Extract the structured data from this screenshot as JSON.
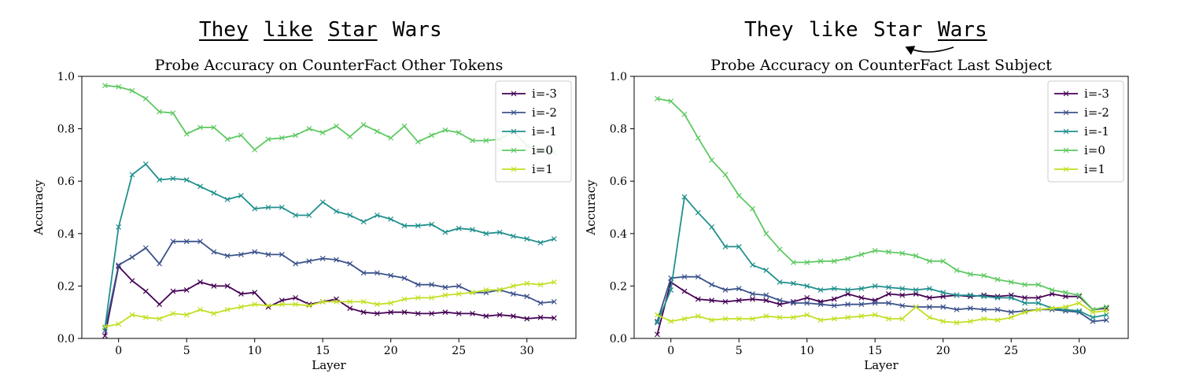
{
  "captions": [
    {
      "words": [
        {
          "text": "They",
          "underline": true
        },
        {
          "text": "like",
          "underline": true
        },
        {
          "text": "Star",
          "underline": true
        },
        {
          "text": "Wars",
          "underline": false
        }
      ],
      "arrow": false
    },
    {
      "words": [
        {
          "text": "They",
          "underline": false
        },
        {
          "text": "like",
          "underline": false
        },
        {
          "text": "Star",
          "underline": false
        },
        {
          "text": "Wars",
          "underline": true
        }
      ],
      "arrow": true
    }
  ],
  "colors": {
    "i=-3": "#440154",
    "i=-2": "#3b528b",
    "i=-1": "#21908d",
    "i=0": "#5ec962",
    "i=1": "#c2df23"
  },
  "chart_data": [
    {
      "type": "line",
      "title": "Probe Accuracy on CounterFact Other Tokens",
      "xlabel": "Layer",
      "ylabel": "Accuracy",
      "xlim": [
        -2.7,
        33.6
      ],
      "ylim": [
        0.0,
        1.0
      ],
      "xticks": [
        0,
        5,
        10,
        15,
        20,
        25,
        30
      ],
      "yticks": [
        0.0,
        0.2,
        0.4,
        0.6,
        0.8,
        1.0
      ],
      "legend_position": "top-right",
      "x": [
        -1,
        0,
        1,
        2,
        3,
        4,
        5,
        6,
        7,
        8,
        9,
        10,
        11,
        12,
        13,
        14,
        15,
        16,
        17,
        18,
        19,
        20,
        21,
        22,
        23,
        24,
        25,
        26,
        27,
        28,
        29,
        30,
        31,
        32
      ],
      "series": [
        {
          "name": "i=-3",
          "values": [
            0.01,
            0.275,
            0.22,
            0.18,
            0.13,
            0.18,
            0.185,
            0.215,
            0.2,
            0.2,
            0.17,
            0.175,
            0.12,
            0.145,
            0.155,
            0.13,
            0.14,
            0.15,
            0.115,
            0.1,
            0.095,
            0.1,
            0.1,
            0.095,
            0.095,
            0.1,
            0.095,
            0.095,
            0.085,
            0.09,
            0.085,
            0.075,
            0.08,
            0.078
          ]
        },
        {
          "name": "i=-2",
          "values": [
            0.03,
            0.28,
            0.31,
            0.345,
            0.285,
            0.37,
            0.37,
            0.37,
            0.33,
            0.315,
            0.32,
            0.33,
            0.32,
            0.32,
            0.285,
            0.295,
            0.305,
            0.3,
            0.285,
            0.25,
            0.25,
            0.24,
            0.23,
            0.205,
            0.205,
            0.195,
            0.2,
            0.175,
            0.175,
            0.185,
            0.17,
            0.16,
            0.135,
            0.14
          ]
        },
        {
          "name": "i=-1",
          "values": [
            0.04,
            0.425,
            0.625,
            0.665,
            0.605,
            0.61,
            0.605,
            0.58,
            0.555,
            0.53,
            0.545,
            0.495,
            0.5,
            0.5,
            0.47,
            0.47,
            0.52,
            0.485,
            0.47,
            0.445,
            0.47,
            0.455,
            0.43,
            0.43,
            0.435,
            0.405,
            0.42,
            0.415,
            0.4,
            0.405,
            0.39,
            0.38,
            0.365,
            0.38
          ]
        },
        {
          "name": "i=0",
          "values": [
            0.965,
            0.96,
            0.945,
            0.915,
            0.865,
            0.86,
            0.78,
            0.805,
            0.805,
            0.76,
            0.775,
            0.72,
            0.76,
            0.765,
            0.775,
            0.8,
            0.785,
            0.81,
            0.77,
            0.815,
            0.79,
            0.765,
            0.81,
            0.75,
            0.775,
            0.795,
            0.785,
            0.755,
            0.755,
            0.76,
            0.79,
            0.735,
            0.715,
            0.71
          ]
        },
        {
          "name": "i=1",
          "values": [
            0.045,
            0.055,
            0.09,
            0.08,
            0.075,
            0.095,
            0.09,
            0.11,
            0.095,
            0.11,
            0.12,
            0.13,
            0.125,
            0.13,
            0.13,
            0.125,
            0.14,
            0.14,
            0.14,
            0.14,
            0.13,
            0.135,
            0.15,
            0.155,
            0.155,
            0.165,
            0.17,
            0.175,
            0.185,
            0.185,
            0.2,
            0.21,
            0.205,
            0.215
          ]
        }
      ]
    },
    {
      "type": "line",
      "title": "Probe Accuracy on CounterFact Last Subject",
      "xlabel": "Layer",
      "ylabel": "Accuracy",
      "xlim": [
        -2.7,
        33.6
      ],
      "ylim": [
        0.0,
        1.0
      ],
      "xticks": [
        0,
        5,
        10,
        15,
        20,
        25,
        30
      ],
      "yticks": [
        0.0,
        0.2,
        0.4,
        0.6,
        0.8,
        1.0
      ],
      "legend_position": "top-right",
      "x": [
        -1,
        0,
        1,
        2,
        3,
        4,
        5,
        6,
        7,
        8,
        9,
        10,
        11,
        12,
        13,
        14,
        15,
        16,
        17,
        18,
        19,
        20,
        21,
        22,
        23,
        24,
        25,
        26,
        27,
        28,
        29,
        30,
        31,
        32
      ],
      "series": [
        {
          "name": "i=-3",
          "values": [
            0.015,
            0.215,
            0.18,
            0.15,
            0.145,
            0.14,
            0.145,
            0.15,
            0.145,
            0.13,
            0.14,
            0.155,
            0.14,
            0.15,
            0.17,
            0.155,
            0.145,
            0.17,
            0.165,
            0.17,
            0.155,
            0.16,
            0.165,
            0.16,
            0.165,
            0.16,
            0.165,
            0.155,
            0.155,
            0.17,
            0.16,
            0.16,
            0.11,
            0.115
          ]
        },
        {
          "name": "i=-2",
          "values": [
            0.065,
            0.23,
            0.235,
            0.235,
            0.205,
            0.185,
            0.19,
            0.17,
            0.165,
            0.145,
            0.135,
            0.135,
            0.13,
            0.125,
            0.13,
            0.13,
            0.135,
            0.135,
            0.125,
            0.12,
            0.12,
            0.12,
            0.11,
            0.115,
            0.11,
            0.11,
            0.1,
            0.105,
            0.11,
            0.11,
            0.105,
            0.1,
            0.065,
            0.07
          ]
        },
        {
          "name": "i=-1",
          "values": [
            0.06,
            0.185,
            0.54,
            0.48,
            0.425,
            0.35,
            0.35,
            0.28,
            0.26,
            0.215,
            0.21,
            0.2,
            0.185,
            0.19,
            0.185,
            0.19,
            0.2,
            0.195,
            0.19,
            0.185,
            0.19,
            0.175,
            0.165,
            0.165,
            0.16,
            0.155,
            0.155,
            0.135,
            0.135,
            0.115,
            0.11,
            0.105,
            0.08,
            0.09
          ]
        },
        {
          "name": "i=0",
          "values": [
            0.915,
            0.905,
            0.855,
            0.765,
            0.68,
            0.625,
            0.545,
            0.495,
            0.4,
            0.34,
            0.29,
            0.29,
            0.295,
            0.295,
            0.305,
            0.32,
            0.335,
            0.33,
            0.325,
            0.315,
            0.295,
            0.295,
            0.26,
            0.245,
            0.24,
            0.225,
            0.215,
            0.205,
            0.205,
            0.185,
            0.175,
            0.165,
            0.11,
            0.12
          ]
        },
        {
          "name": "i=1",
          "values": [
            0.09,
            0.065,
            0.075,
            0.085,
            0.07,
            0.075,
            0.075,
            0.075,
            0.085,
            0.08,
            0.08,
            0.09,
            0.07,
            0.075,
            0.08,
            0.085,
            0.09,
            0.075,
            0.075,
            0.12,
            0.08,
            0.065,
            0.06,
            0.065,
            0.075,
            0.07,
            0.08,
            0.1,
            0.11,
            0.115,
            0.12,
            0.135,
            0.1,
            0.105
          ]
        }
      ]
    }
  ]
}
